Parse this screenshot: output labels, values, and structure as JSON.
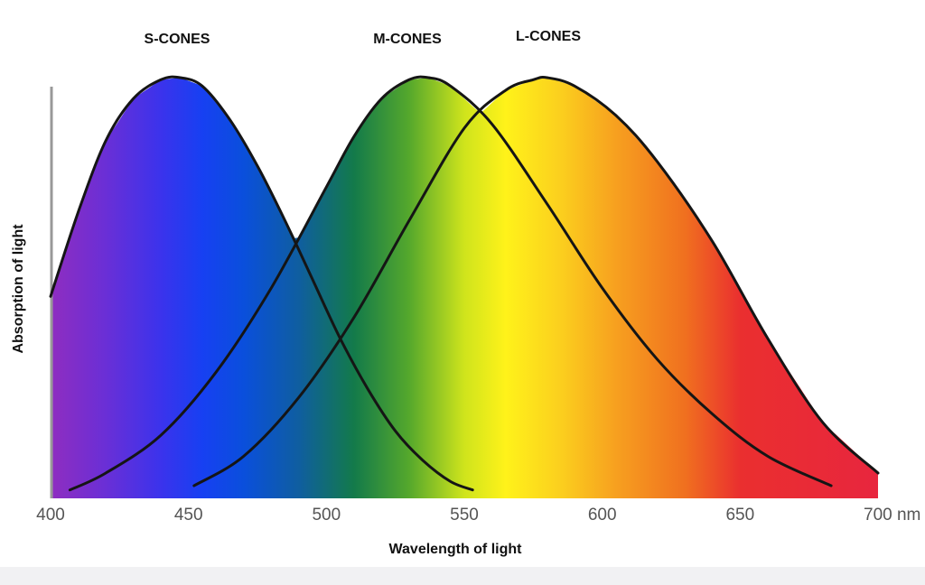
{
  "chart_data": {
    "type": "line",
    "xlabel": "Wavelength of light",
    "ylabel": "Absorption of light",
    "x_unit": "nm",
    "xlim": [
      400,
      700
    ],
    "ylim": [
      0,
      1
    ],
    "x_ticks": [
      400,
      450,
      500,
      550,
      600,
      650,
      700
    ],
    "series": [
      {
        "name": "S-CONES",
        "x": [
          400,
          410,
          420,
          430,
          440,
          447,
          455,
          465,
          475,
          485,
          495,
          505,
          515,
          525,
          535,
          545,
          553
        ],
        "y": [
          0.48,
          0.68,
          0.85,
          0.95,
          0.995,
          1.0,
          0.98,
          0.9,
          0.79,
          0.66,
          0.52,
          0.38,
          0.26,
          0.16,
          0.09,
          0.04,
          0.02
        ]
      },
      {
        "name": "M-CONES",
        "x": [
          407,
          420,
          440,
          460,
          480,
          500,
          510,
          520,
          530,
          537,
          545,
          560,
          580,
          600,
          620,
          640,
          660,
          683
        ],
        "y": [
          0.02,
          0.06,
          0.15,
          0.3,
          0.5,
          0.74,
          0.86,
          0.95,
          0.995,
          1.0,
          0.98,
          0.89,
          0.7,
          0.5,
          0.33,
          0.2,
          0.1,
          0.03
        ]
      },
      {
        "name": "L-CONES",
        "x": [
          452,
          470,
          490,
          510,
          530,
          550,
          565,
          575,
          580,
          590,
          605,
          620,
          640,
          660,
          680,
          700
        ],
        "y": [
          0.03,
          0.1,
          0.24,
          0.43,
          0.66,
          0.88,
          0.97,
          0.995,
          1.0,
          0.98,
          0.91,
          0.8,
          0.61,
          0.38,
          0.18,
          0.06
        ]
      }
    ],
    "spectrum_colors": [
      {
        "nm": 400,
        "color": "#8f2dc0"
      },
      {
        "nm": 420,
        "color": "#6a2fd6"
      },
      {
        "nm": 440,
        "color": "#3b33ec"
      },
      {
        "nm": 455,
        "color": "#1740f2"
      },
      {
        "nm": 470,
        "color": "#0a4fdc"
      },
      {
        "nm": 490,
        "color": "#0f5ea0"
      },
      {
        "nm": 510,
        "color": "#137a4a"
      },
      {
        "nm": 530,
        "color": "#55a82c"
      },
      {
        "nm": 550,
        "color": "#cfe41c"
      },
      {
        "nm": 565,
        "color": "#fff21a"
      },
      {
        "nm": 585,
        "color": "#fbcf1e"
      },
      {
        "nm": 605,
        "color": "#f7a01f"
      },
      {
        "nm": 630,
        "color": "#f0701f"
      },
      {
        "nm": 650,
        "color": "#ea2f2f"
      },
      {
        "nm": 700,
        "color": "#e8263e"
      }
    ],
    "curve_color": "#151515",
    "axis_color": "#999999"
  }
}
